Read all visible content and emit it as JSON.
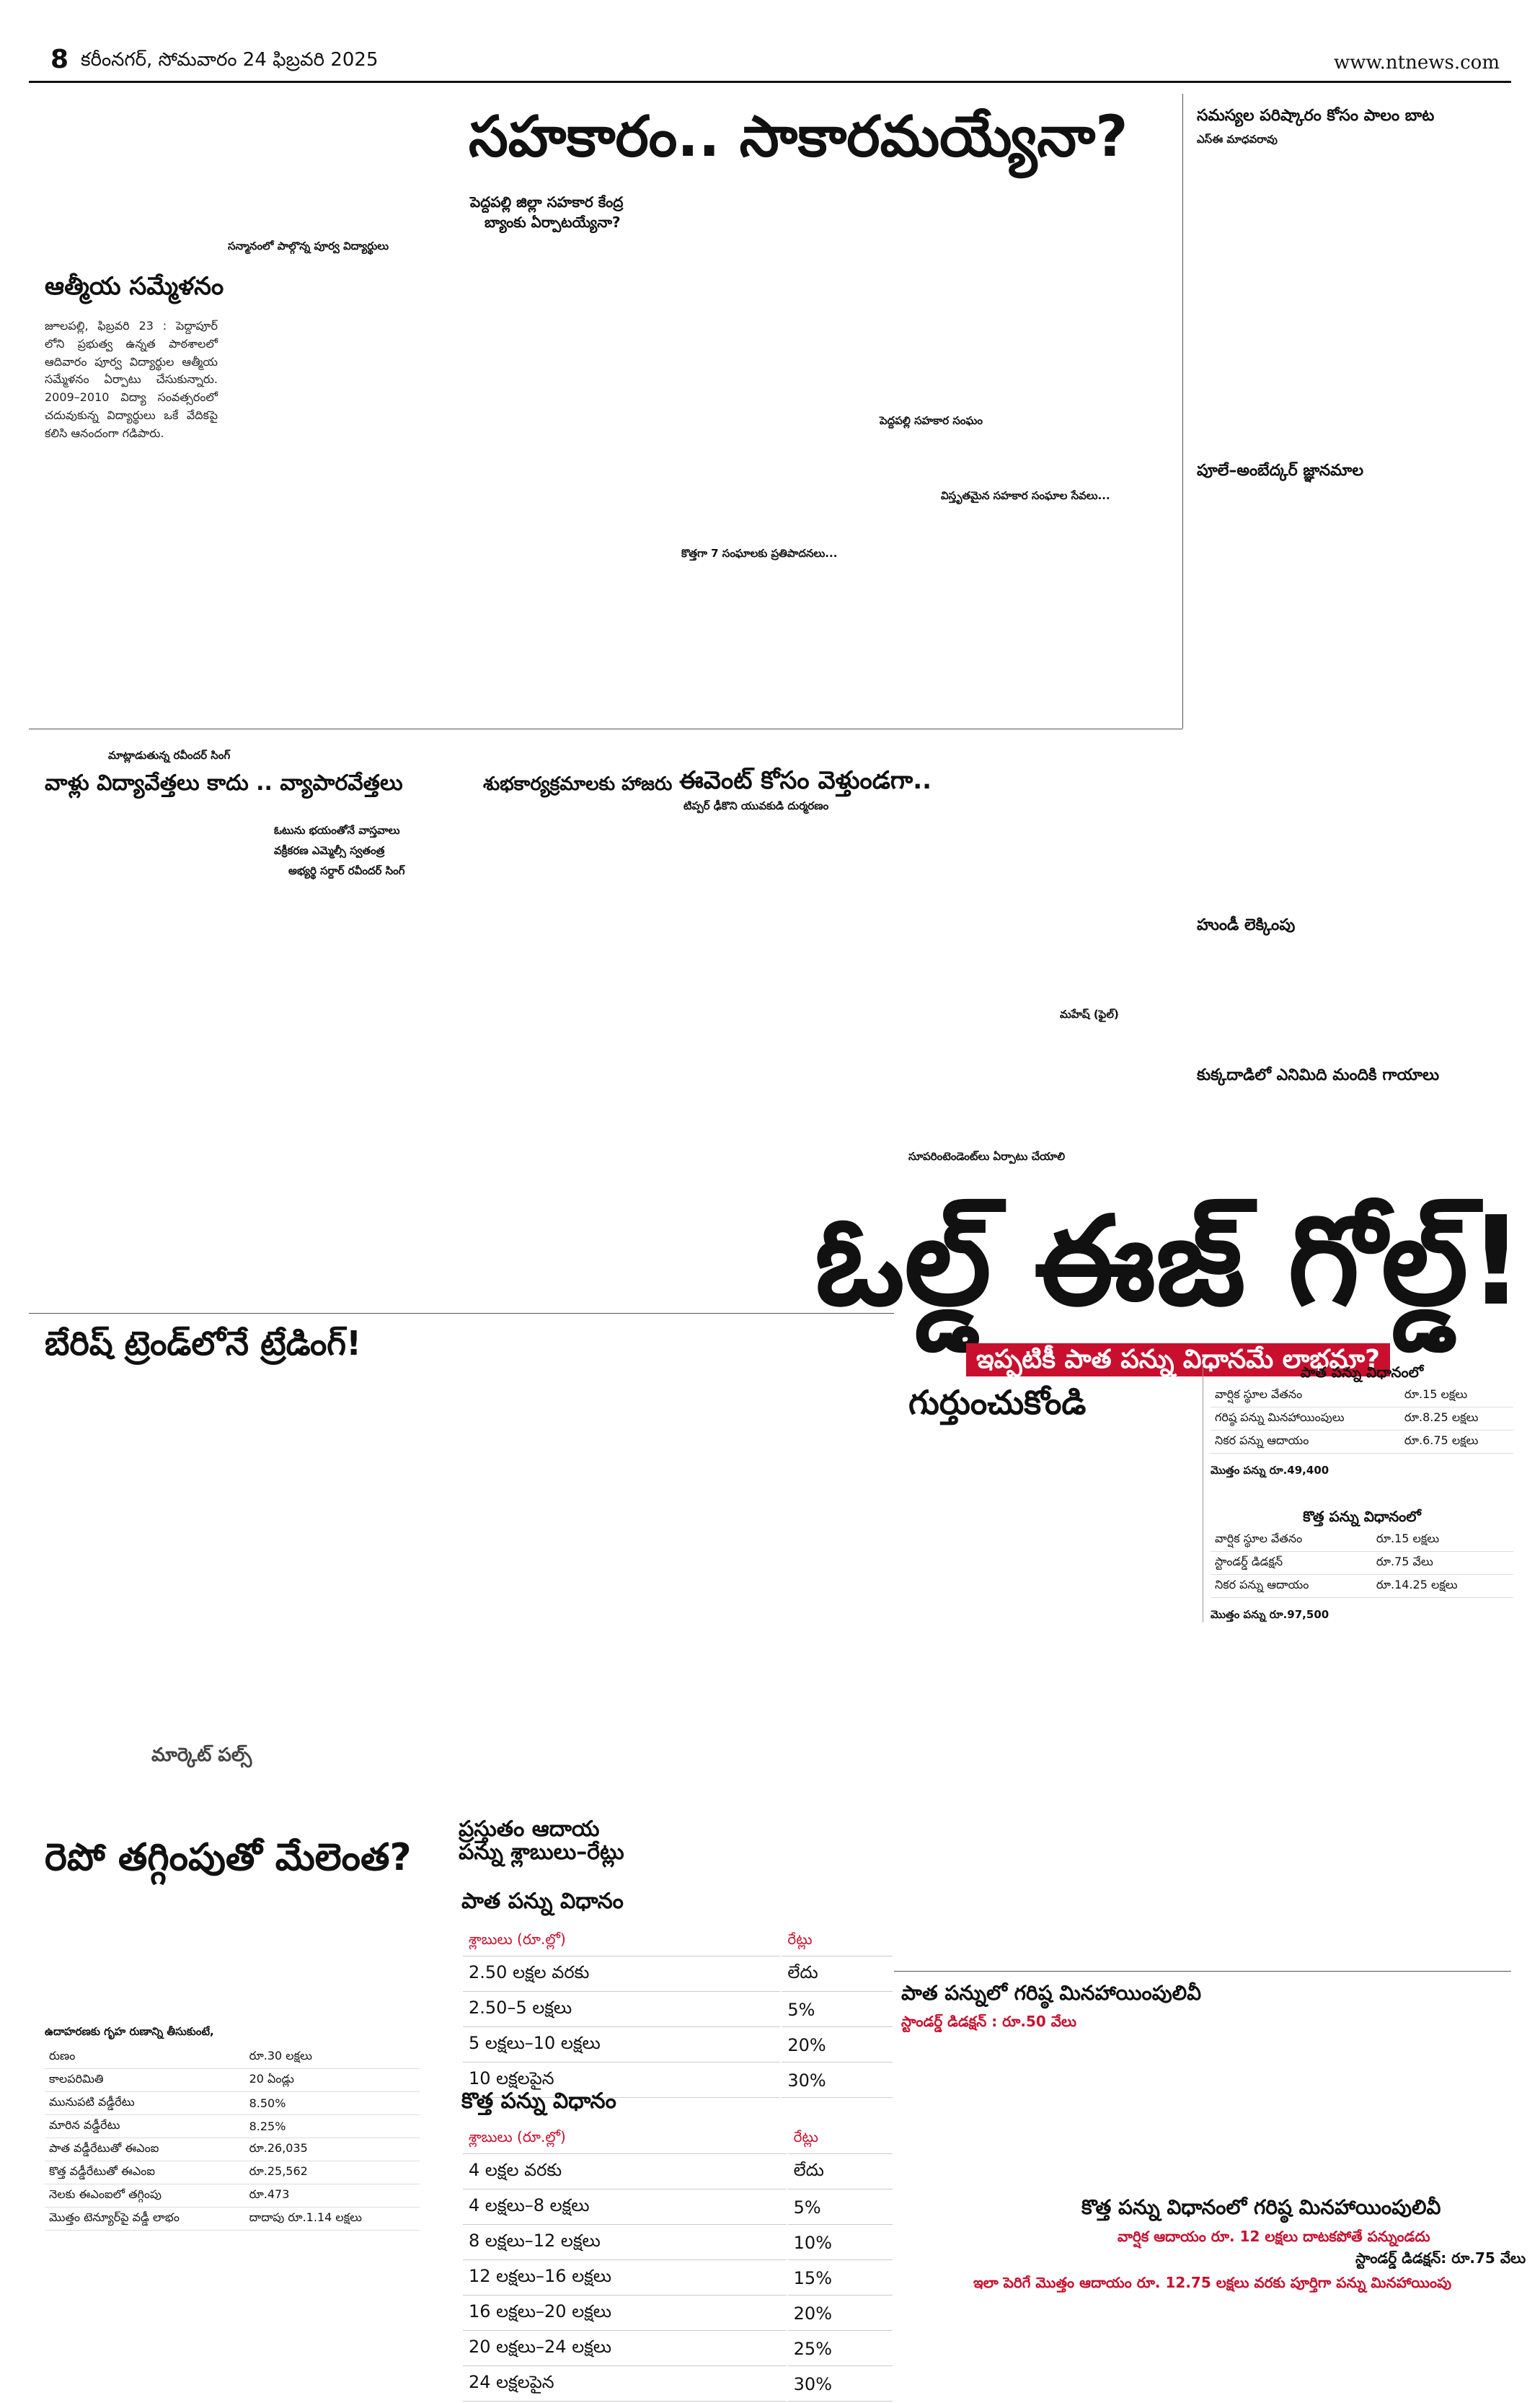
{
  "masthead": {
    "page_no": "8",
    "place_date": "కరీంనగర్, సోమవారం 24 ఫిబ్రవరి 2025",
    "url": "www.ntnews.com"
  },
  "main_story": {
    "headline": "సహకారం.. సాకారమయ్యేనా?",
    "deck_1": "పెద్దపల్లి జిల్లా సహకార కేంద్ర",
    "deck_2": "బ్యాంకు ఏర్పాటయ్యేనా?",
    "inline_label": "పెద్దపల్లి సహకార సంఘం",
    "subhead_1": "కొత్తగా 7 సంఘాలకు ప్రతిపాదనలు...",
    "subhead_2": "విస్తృతమైన సహకార సంఘాల సేవలు..."
  },
  "left_top": {
    "kicker": "సన్మానంలో పాల్గొన్న పూర్వ విద్యార్థులు",
    "headline": "ఆత్మీయ సమ్మేళనం",
    "text": "జూలపల్లి, ఫిబ్రవరి 23 : పెద్దాపూర్ లోని ప్రభుత్వ ఉన్నత పాఠశాలలో ఆదివారం పూర్వ విద్యార్థుల ఆత్మీయ సమ్మేళనం ఏర్పాటు చేసుకున్నారు. 2009–2010 విద్యా సంవత్సరంలో చదువుకున్న విద్యార్థులు ఒకే వేదికపై కలిసి ఆనందంగా గడిపారు."
  },
  "right_col": {
    "headline": "సమస్యల పరిష్కారం కోసం పాలం బాట",
    "byline": "ఎస్ఈ మాధవరావు",
    "section_2": "పూలే–అంబేద్కర్ జ్ఞానమాల",
    "section_3": "హుండీ లెక్కింపు",
    "section_4": "కుక్కదాడిలో ఎనిమిది మందికి గాయాలు"
  },
  "middle_row": {
    "left_kicker": "మాట్లాడుతున్న రవీందర్ సింగ్",
    "left_headline": "వాళ్లు విద్యావేత్తలు కాదు .. వ్యాపారవేత్తలు",
    "left_bullet_1": "ఓటును భయంతోనే వాస్తవాలు",
    "left_bullet_2": "వక్రీకరణ ఎమ్మెల్సీ స్వతంత్ర",
    "left_bullet_3": "అభ్యర్థి సర్దార్ రవీందర్ సింగ్",
    "mid_headline": "శుభకార్యక్రమాలకు హాజరు",
    "right_headline": "ఈవెంట్ కోసం వెళ్తుండగా..",
    "right_bullet": "టిప్పర్ ఢీకొని యువకుడి దుర్మరణం",
    "caption": "మహేష్ (ఫైల్)",
    "subhead": "సూపరింటెండెంట్‌లు ఏర్పాటు చేయాలి"
  },
  "lower_left": {
    "headline_1": "బేరిష్ ట్రెండ్‌లోనే ట్రేడింగ్!",
    "column_label": "మార్కెట్ పల్స్",
    "headline_2": "రెపో తగ్గింపుతో మేలెంత?",
    "loan_table_label": "ఉదాహరణకు గృహ రుణాన్ని తీసుకుంటే,",
    "loan_rows": [
      {
        "k": "రుణం",
        "v": "రూ.30 లక్షలు"
      },
      {
        "k": "కాలపరిమితి",
        "v": "20 ఏండ్లు"
      },
      {
        "k": "మునుపటి వడ్డీరేటు",
        "v": "8.50%"
      },
      {
        "k": "మారిన వడ్డీరేటు",
        "v": "8.25%"
      },
      {
        "k": "పాత వడ్డీరేటుతో ఈఎంఐ",
        "v": "రూ.26,035"
      },
      {
        "k": "కొత్త వడ్డీరేటుతో ఈఎంఐ",
        "v": "రూ.25,562"
      },
      {
        "k": "నెలకు ఈఎంఐలో తగ్గింపు",
        "v": "రూ.473"
      },
      {
        "k": "మొత్తం టెన్యూర్‌పై వడ్డీ లాభం",
        "v": "దాదాపు రూ.1.14 లక్షలు"
      }
    ]
  },
  "feature": {
    "headline": "ఓల్డ్ ఈజ్ గోల్డ్!",
    "deck": "ఇప్పటికీ పాత పన్ను విధానమే లాభమా?",
    "remember": "గుర్తుంచుకోండి",
    "slabs_title_1": "ప్రస్తుతం ఆదాయ పన్ను శ్లాబులు–రేట్లు",
    "old_regime": "పాత పన్ను విధానం",
    "new_regime": "కొత్త పన్ను విధానం",
    "col_slab": "శ్లాబులు (రూ.ల్లో)",
    "col_rate": "రేట్లు",
    "old_slabs": [
      {
        "s": "2.50 లక్షల వరకు",
        "r": "లేదు"
      },
      {
        "s": "2.50–5 లక్షలు",
        "r": "5%"
      },
      {
        "s": "5 లక్షలు–10 లక్షలు",
        "r": "20%"
      },
      {
        "s": "10 లక్షలపైన",
        "r": "30%"
      }
    ],
    "new_slabs": [
      {
        "s": "4 లక్షల వరకు",
        "r": "లేదు"
      },
      {
        "s": "4 లక్షలు–8 లక్షలు",
        "r": "5%"
      },
      {
        "s": "8 లక్షలు–12 లక్షలు",
        "r": "10%"
      },
      {
        "s": "12 లక్షలు–16 లక్షలు",
        "r": "15%"
      },
      {
        "s": "16 లక్షలు–20 లక్షలు",
        "r": "20%"
      },
      {
        "s": "20 లక్షలు–24 లక్షలు",
        "r": "25%"
      },
      {
        "s": "24 లక్షలపైన",
        "r": "30%"
      }
    ],
    "side_old_title": "పాత పన్ను విధానంలో",
    "side_old_rows": [
      {
        "k": "వార్షిక స్థూల వేతనం",
        "v": "రూ.15 లక్షలు"
      },
      {
        "k": "గరిష్ఠ పన్ను మినహాయింపులు",
        "v": "రూ.8.25 లక్షలు"
      },
      {
        "k": "నికర పన్ను ఆదాయం",
        "v": "రూ.6.75 లక్షలు"
      }
    ],
    "side_new_title": "కొత్త పన్ను విధానంలో",
    "side_new_rows": [
      {
        "k": "వార్షిక స్థూల వేతనం",
        "v": "రూ.15 లక్షలు"
      },
      {
        "k": "స్టాండర్డ్ డిడక్షన్",
        "v": "రూ.75 వేలు"
      },
      {
        "k": "నికర పన్ను ఆదాయం",
        "v": "రూ.14.25 లక్షలు"
      }
    ],
    "side_tax_old": "మొత్తం పన్ను రూ.49,400",
    "side_tax_new": "మొత్తం పన్ను రూ.97,500",
    "bottom_title_1": "పాత పన్నులో గరిష్ఠ మినహాయింపులివీ",
    "std_deduction_1": "స్టాండర్డ్ డిడక్షన్ : రూ.50 వేలు",
    "bottom_title_2": "కొత్త పన్ను విధానంలో గరిష్ఠ మినహాయింపులివీ",
    "bottom_red_1": "వార్షిక ఆదాయం రూ. 12 లక్షలు దాటకపోతే పన్నుండదు",
    "std_deduction_2": "స్టాండర్డ్ డిడక్షన్: రూ.75 వేలు",
    "bottom_red_2": "ఇలా పెరిగే మొత్తం ఆదాయం రూ. 12.75 లక్షలు వరకు పూర్తిగా పన్ను మినహాయింపు"
  }
}
